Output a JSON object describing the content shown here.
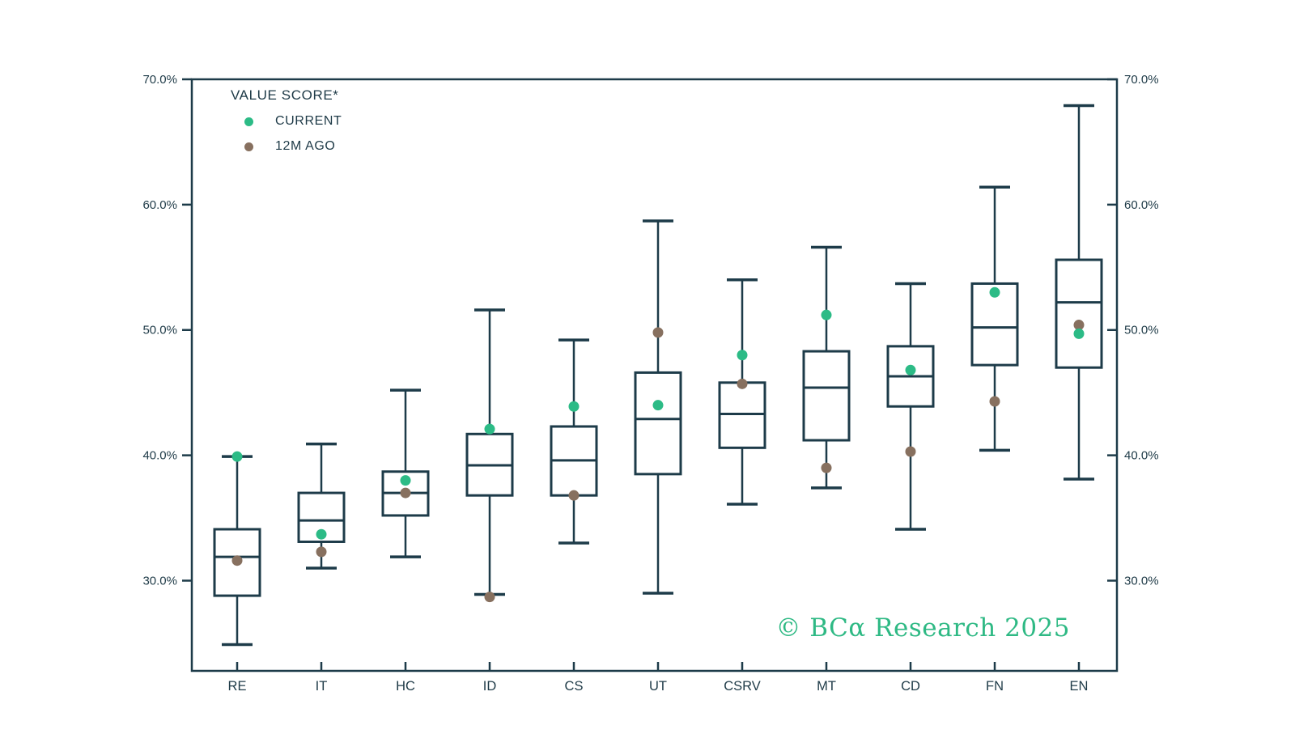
{
  "chart_data": {
    "type": "box",
    "title": "VALUE SCORE*",
    "legend": {
      "items": [
        {
          "label": "CURRENT",
          "color": "#2cbb86"
        },
        {
          "label": "12M AGO",
          "color": "#87705f"
        }
      ]
    },
    "categories": [
      "RE",
      "IT",
      "HC",
      "ID",
      "CS",
      "UT",
      "CSRV",
      "MT",
      "CD",
      "FN",
      "EN"
    ],
    "y_axis": {
      "tick_values": [
        70,
        60,
        50,
        40,
        30
      ],
      "tick_labels": [
        "70.0%",
        "60.0%",
        "50.0%",
        "40.0%",
        "30.0%"
      ],
      "ylim": [
        22.8,
        70.0
      ],
      "label_sides": "both",
      "grid": false
    },
    "series": [
      {
        "category": "RE",
        "whisker_low": 24.9,
        "q1": 28.8,
        "median": 31.9,
        "q3": 34.1,
        "whisker_high": 39.9,
        "current": 39.9,
        "ago_12m": 31.6
      },
      {
        "category": "IT",
        "whisker_low": 31.0,
        "q1": 33.1,
        "median": 34.8,
        "q3": 37.0,
        "whisker_high": 40.9,
        "current": 33.7,
        "ago_12m": 32.3
      },
      {
        "category": "HC",
        "whisker_low": 31.9,
        "q1": 35.2,
        "median": 37.0,
        "q3": 38.7,
        "whisker_high": 45.2,
        "current": 38.0,
        "ago_12m": 37.0
      },
      {
        "category": "ID",
        "whisker_low": 28.9,
        "q1": 36.8,
        "median": 39.2,
        "q3": 41.7,
        "whisker_high": 51.6,
        "current": 42.1,
        "ago_12m": 28.7
      },
      {
        "category": "CS",
        "whisker_low": 33.0,
        "q1": 36.8,
        "median": 39.6,
        "q3": 42.3,
        "whisker_high": 49.2,
        "current": 43.9,
        "ago_12m": 36.8
      },
      {
        "category": "UT",
        "whisker_low": 29.0,
        "q1": 38.5,
        "median": 42.9,
        "q3": 46.6,
        "whisker_high": 58.7,
        "current": 44.0,
        "ago_12m": 49.8
      },
      {
        "category": "CSRV",
        "whisker_low": 36.1,
        "q1": 40.6,
        "median": 43.3,
        "q3": 45.8,
        "whisker_high": 54.0,
        "current": 48.0,
        "ago_12m": 45.7
      },
      {
        "category": "MT",
        "whisker_low": 37.4,
        "q1": 41.2,
        "median": 45.4,
        "q3": 48.3,
        "whisker_high": 56.6,
        "current": 51.2,
        "ago_12m": 39.0
      },
      {
        "category": "CD",
        "whisker_low": 34.1,
        "q1": 43.9,
        "median": 46.3,
        "q3": 48.7,
        "whisker_high": 53.7,
        "current": 46.8,
        "ago_12m": 40.3
      },
      {
        "category": "FN",
        "whisker_low": 40.4,
        "q1": 47.2,
        "median": 50.2,
        "q3": 53.7,
        "whisker_high": 61.4,
        "current": 53.0,
        "ago_12m": 44.3
      },
      {
        "category": "EN",
        "whisker_low": 38.1,
        "q1": 47.0,
        "median": 52.2,
        "q3": 55.6,
        "whisker_high": 67.9,
        "current": 49.7,
        "ago_12m": 50.4
      }
    ],
    "watermark": "© BCα Research 2025"
  },
  "colors": {
    "line": "#1d3b49",
    "text": "#1e3a47",
    "current_dot": "#2cbb86",
    "ago_dot": "#87705f",
    "watermark": "#2eb984",
    "background": "#ffffff"
  }
}
